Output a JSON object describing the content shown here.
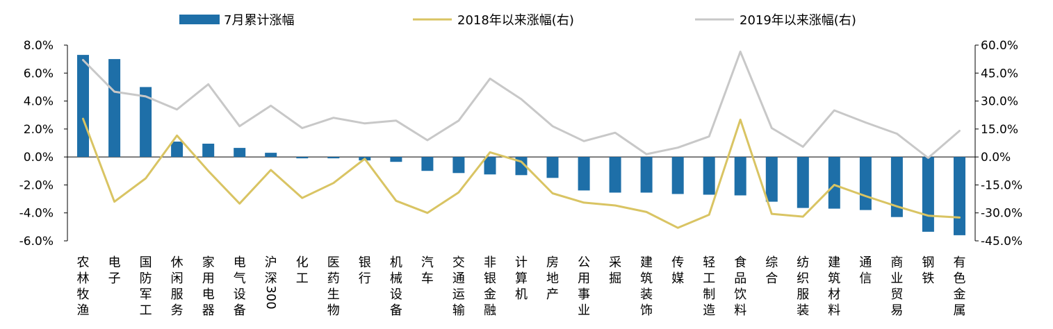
{
  "chart_data": {
    "type": "bar",
    "categories": [
      "农林牧渔",
      "电子",
      "国防军工",
      "休闲服务",
      "家用电器",
      "电气设备",
      "沪深300",
      "化工",
      "医药生物",
      "银行",
      "机械设备",
      "汽车",
      "交通运输",
      "非银金融",
      "计算机",
      "房地产",
      "公用事业",
      "采掘",
      "建筑装饰",
      "传媒",
      "轻工制造",
      "食品饮料",
      "综合",
      "纺织服装",
      "建筑材料",
      "通信",
      "商业贸易",
      "钢铁",
      "有色金属"
    ],
    "series": [
      {
        "name": "7月累计涨幅",
        "axis": "left",
        "kind": "bar",
        "color": "#1e6fa8",
        "values": [
          7.3,
          7.0,
          5.0,
          1.1,
          0.95,
          0.65,
          0.3,
          -0.1,
          -0.1,
          -0.25,
          -0.35,
          -1.0,
          -1.15,
          -1.25,
          -1.3,
          -1.5,
          -2.4,
          -2.55,
          -2.55,
          -2.65,
          -2.7,
          -2.75,
          -3.2,
          -3.65,
          -3.7,
          -3.8,
          -4.3,
          -5.35,
          -5.6
        ]
      },
      {
        "name": "2018年以来涨幅(右)",
        "axis": "right",
        "kind": "line",
        "color": "#d9c463",
        "values": [
          20.5,
          -24.0,
          -11.5,
          11.5,
          -7.5,
          -25.0,
          -7.0,
          -22.0,
          -14.0,
          -1.0,
          -23.5,
          -30.0,
          -19.0,
          2.5,
          -2.5,
          -19.5,
          -24.5,
          -26.0,
          -29.5,
          -38.0,
          -31.0,
          20.0,
          -30.5,
          -32.0,
          -15.0,
          -21.0,
          -26.5,
          -31.5,
          -32.5
        ]
      },
      {
        "name": "2019年以来涨幅(右)",
        "axis": "right",
        "kind": "line",
        "color": "#c8c8c8",
        "values": [
          52.0,
          35.0,
          32.5,
          25.5,
          39.0,
          16.5,
          27.5,
          15.5,
          21.0,
          18.0,
          19.5,
          9.0,
          19.5,
          42.0,
          31.0,
          16.5,
          8.5,
          13.0,
          1.5,
          5.0,
          11.0,
          56.5,
          15.5,
          5.5,
          25.0,
          18.5,
          12.5,
          -0.5,
          14.0
        ]
      }
    ],
    "y_left": {
      "min": -6.0,
      "max": 8.0,
      "step": 2.0,
      "ticks": [
        "-6.0%",
        "-4.0%",
        "-2.0%",
        "0.0%",
        "2.0%",
        "4.0%",
        "6.0%",
        "8.0%"
      ]
    },
    "y_right": {
      "min": -45.0,
      "max": 60.0,
      "step": 15.0,
      "ticks": [
        "-45.0%",
        "-30.0%",
        "-15.0%",
        "0.0%",
        "15.0%",
        "30.0%",
        "45.0%",
        "60.0%"
      ]
    },
    "legend": {
      "placement": "top",
      "items": [
        {
          "label": "7月累计涨幅",
          "kind": "bar",
          "color": "#1e6fa8"
        },
        {
          "label": "2018年以来涨幅(右)",
          "kind": "line",
          "color": "#d9c463"
        },
        {
          "label": "2019年以来涨幅(右)",
          "kind": "line",
          "color": "#c8c8c8"
        }
      ]
    },
    "grid": false,
    "title": "",
    "xlabel": "",
    "ylabel": ""
  }
}
